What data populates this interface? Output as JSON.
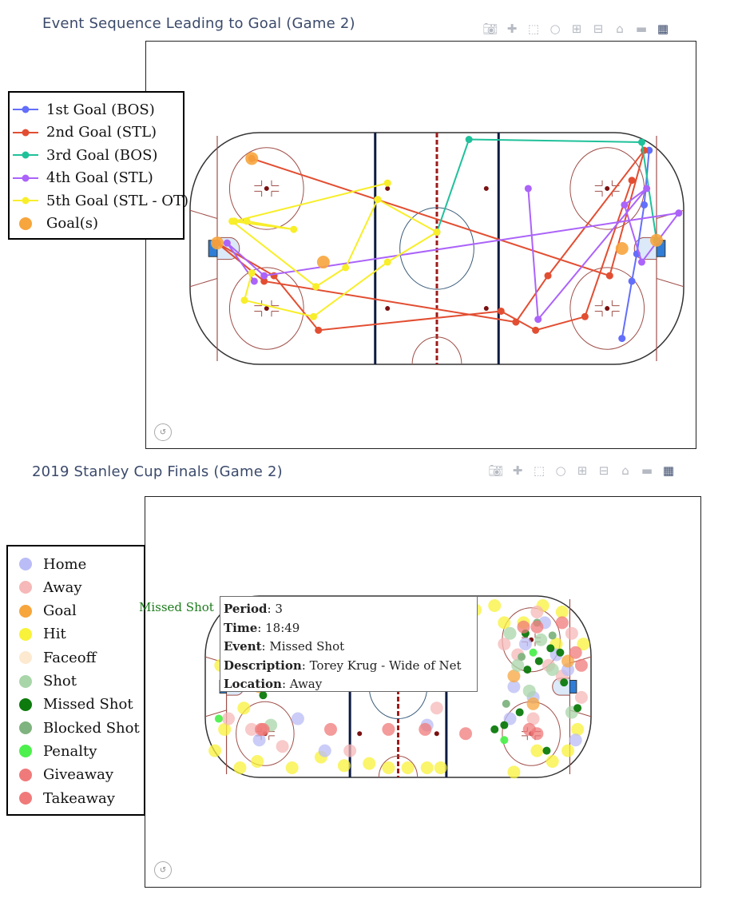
{
  "colors": {
    "title": "#3b4a6b",
    "modebar_icon": "#b5b9c2",
    "rink_line": "#a0504a",
    "blue_line": "#0c1a40",
    "center_line": "#9b1b1b",
    "net": "#2f7dd6"
  },
  "modebar": {
    "icons": [
      "camera-icon",
      "pan-icon",
      "box-select-icon",
      "lasso-icon",
      "zoom-in-icon",
      "zoom-out-icon",
      "home-icon",
      "hover-icon",
      "plotly-logo-icon"
    ]
  },
  "top": {
    "title": "Event Sequence Leading to Goal (Game 2)",
    "legend": [
      {
        "label": "1st Goal (BOS)",
        "color": "#636efa",
        "kind": "line"
      },
      {
        "label": "2nd Goal (STL)",
        "color": "#e24e32",
        "kind": "line"
      },
      {
        "label": "3rd Goal (BOS)",
        "color": "#1fc19a",
        "kind": "line"
      },
      {
        "label": "4th Goal (STL)",
        "color": "#ab63fa",
        "kind": "line"
      },
      {
        "label": "5th Goal (STL - OT)",
        "color": "#f8ee2a",
        "kind": "line"
      },
      {
        "label": "Goal(s)",
        "color": "#f7a53d",
        "kind": "marker"
      }
    ]
  },
  "bottom": {
    "title": "2019 Stanley Cup Finals (Game 2)",
    "legend": [
      {
        "label": "Home",
        "color": "#b9bcf6"
      },
      {
        "label": "Away",
        "color": "#f6b8b8"
      },
      {
        "label": "Goal",
        "color": "#f7a53d"
      },
      {
        "label": "Hit",
        "color": "#f8f23a"
      },
      {
        "label": "Faceoff",
        "color": "#fde9d0"
      },
      {
        "label": "Shot",
        "color": "#a9d6a9"
      },
      {
        "label": "Missed Shot",
        "color": "#0c7a0c"
      },
      {
        "label": "Blocked Shot",
        "color": "#7fb37f"
      },
      {
        "label": "Penalty",
        "color": "#4df04d"
      },
      {
        "label": "Giveaway",
        "color": "#f07a7a"
      },
      {
        "label": "Takeaway",
        "color": "#f07a7a"
      }
    ],
    "tooltip": {
      "trace": "Missed Shot",
      "period_label": "Period",
      "period": "3",
      "time_label": "Time",
      "time": "18:49",
      "event_label": "Event",
      "event": "Missed Shot",
      "description_label": "Description",
      "description": "Torey Krug - Wide of Net",
      "location_label": "Location",
      "location": "Away"
    }
  },
  "chart_data": [
    {
      "type": "line",
      "title": "Event Sequence Leading to Goal (Game 2)",
      "xlabel": "",
      "ylabel": "",
      "xlim": [
        -100,
        100
      ],
      "ylim": [
        -42.5,
        42.5
      ],
      "grid": false,
      "legend_placement": "left",
      "series": [
        {
          "name": "1st Goal (BOS)",
          "color": "#636efa",
          "x": [
            86,
            84,
            81,
            79,
            75
          ],
          "y": [
            36,
            16,
            -2,
            -12,
            -33
          ]
        },
        {
          "name": "2nd Goal (STL)",
          "color": "#e24e32",
          "x": [
            -75,
            70,
            84,
            45,
            32,
            -70,
            -89,
            -66,
            -48,
            26,
            40,
            60,
            79
          ],
          "y": [
            33,
            -10,
            36,
            -10,
            -27,
            -12,
            2,
            -10,
            -30,
            -23,
            -30,
            -25,
            25
          ]
        },
        {
          "name": "3rd Goal (BOS)",
          "color": "#1fc19a",
          "x": [
            0,
            13,
            83,
            89
          ],
          "y": [
            6,
            40,
            39,
            3
          ]
        },
        {
          "name": "4th Goal (STL)",
          "color": "#ab63fa",
          "x": [
            37,
            41,
            85,
            76,
            83,
            98,
            -70,
            -85,
            -74
          ],
          "y": [
            22,
            -26,
            22,
            16,
            -5,
            13,
            -10,
            2,
            -12
          ]
        },
        {
          "name": "5th Goal (STL - OT)",
          "color": "#f8ee2a",
          "x": [
            -20,
            -82,
            -77,
            -58,
            -83,
            -49,
            -37,
            -24,
            0,
            -20,
            -50,
            -78,
            -75
          ],
          "y": [
            24,
            10,
            10,
            7,
            10,
            -14,
            -7,
            18,
            6,
            -5,
            -25,
            -19,
            -9
          ]
        }
      ],
      "goals": {
        "name": "Goal(s)",
        "color": "#f7a53d",
        "x": [
          -75,
          -89,
          75,
          89,
          -46
        ],
        "y": [
          33,
          2,
          0,
          3,
          -5
        ]
      }
    },
    {
      "type": "scatter",
      "title": "2019 Stanley Cup Finals (Game 2)",
      "xlabel": "",
      "ylabel": "",
      "xlim": [
        -100,
        100
      ],
      "ylim": [
        -42.5,
        42.5
      ],
      "grid": false,
      "legend_placement": "left",
      "series": [
        {
          "name": "Hit",
          "color": "#f8f23a",
          "x": [
            -95,
            -90,
            -82,
            -80,
            -73,
            -55,
            -40,
            -28,
            -15,
            -5,
            5,
            15,
            22,
            60,
            72,
            80,
            88,
            93,
            96,
            -92,
            -85,
            50,
            65,
            85,
            -60,
            -30,
            -10,
            30,
            40,
            55,
            75,
            82
          ],
          "y": [
            -30,
            -20,
            -38,
            -10,
            -35,
            -38,
            -33,
            -37,
            -36,
            -38,
            -38,
            -38,
            -38,
            -40,
            -30,
            -35,
            -30,
            -20,
            20,
            10,
            15,
            38,
            30,
            35,
            25,
            38,
            36,
            38,
            36,
            30,
            38,
            20
          ]
        },
        {
          "name": "Away",
          "color": "#f6b8b8",
          "x": [
            -88,
            -76,
            -70,
            -60,
            -45,
            -25,
            -15,
            8,
            20,
            62,
            70,
            78,
            90,
            95,
            -80,
            55,
            72,
            85
          ],
          "y": [
            -15,
            -20,
            5,
            -28,
            10,
            -30,
            30,
            25,
            -10,
            15,
            -15,
            10,
            25,
            -5,
            30,
            20,
            35,
            5
          ]
        },
        {
          "name": "Home",
          "color": "#b9bcf6",
          "x": [
            -84,
            -72,
            -65,
            -52,
            -38,
            -20,
            5,
            15,
            58,
            66,
            76,
            88,
            92,
            60,
            70,
            82
          ],
          "y": [
            10,
            -25,
            20,
            -15,
            -30,
            15,
            36,
            -18,
            -15,
            20,
            30,
            8,
            -25,
            0,
            -5,
            15
          ]
        },
        {
          "name": "Goal",
          "color": "#f7a53d",
          "x": [
            -72,
            60,
            70,
            88
          ],
          "y": [
            0,
            5,
            -8,
            12
          ]
        },
        {
          "name": "Shot",
          "color": "#a9d6a9",
          "x": [
            -78,
            -66,
            -55,
            62,
            68,
            74,
            80,
            90,
            -60,
            58
          ],
          "y": [
            8,
            -18,
            4,
            10,
            -2,
            22,
            8,
            -12,
            20,
            25
          ]
        },
        {
          "name": "Missed Shot",
          "color": "#0c7a0c",
          "x": [
            -82,
            -75,
            -70,
            -62,
            -50,
            50,
            55,
            63,
            67,
            73,
            79,
            86,
            93,
            66,
            77,
            84
          ],
          "y": [
            5,
            3,
            -4,
            6,
            10,
            -20,
            -18,
            -12,
            8,
            12,
            18,
            2,
            -10,
            25,
            -30,
            16
          ]
        },
        {
          "name": "Blocked Shot",
          "color": "#7fb37f",
          "x": [
            -86,
            -68,
            56,
            64,
            80,
            72
          ],
          "y": [
            12,
            2,
            -8,
            14,
            24,
            30
          ]
        },
        {
          "name": "Penalty",
          "color": "#4df04d",
          "x": [
            -93,
            55,
            70
          ],
          "y": [
            -15,
            -25,
            16
          ]
        },
        {
          "name": "Giveaway",
          "color": "#f07a7a",
          "x": [
            -71,
            -35,
            -5,
            14,
            35,
            65,
            72,
            85,
            95
          ],
          "y": [
            -20,
            -20,
            -20,
            -20,
            -22,
            28,
            -22,
            30,
            10
          ]
        },
        {
          "name": "Takeaway",
          "color": "#f07a7a",
          "x": [
            -70,
            -34,
            36,
            68,
            72,
            92
          ],
          "y": [
            -20,
            22,
            22,
            -20,
            28,
            16
          ]
        }
      ]
    }
  ]
}
